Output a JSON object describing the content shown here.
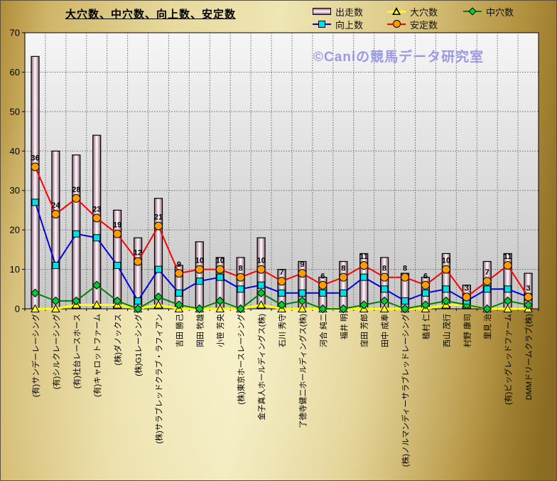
{
  "watermark": "©Caniの競馬データ研究室",
  "legend": {
    "items": [
      {
        "label": "出走数",
        "swatch": "bar"
      },
      {
        "label": "大穴数",
        "swatch": "triangle"
      },
      {
        "label": "中穴数",
        "swatch": "diamond"
      },
      {
        "label": "向上数",
        "swatch": "square"
      },
      {
        "label": "安定数",
        "swatch": "circle"
      }
    ]
  },
  "colors": {
    "bar_edge": "#8d6379",
    "bar_center": "#ffffff",
    "yellow_line": "#ffff00",
    "green_line": "#008000",
    "green_marker": "#00cc33",
    "blue_line": "#0000e0",
    "cyan_marker": "#00e0e6",
    "red_line": "#ff0000",
    "orange_marker": "#ff9d00",
    "watermark": "#9b9be4",
    "plot_top": "#f6f6f6",
    "plot_bottom": "#c6c6c6"
  },
  "chart_data": {
    "type": "bar",
    "title": "大穴数、中穴数、向上数、安定数",
    "xlabel": "",
    "ylabel": "",
    "ylim": [
      0,
      70
    ],
    "yticks": [
      0,
      10,
      20,
      30,
      40,
      50,
      60,
      70
    ],
    "grid": true,
    "legend_position": "top-right",
    "categories": [
      "(有)サンデーレーシング",
      "(有)シルクレーシング",
      "(有)社台レースホース",
      "(有)キャロットファーム",
      "(株)ダノックス",
      "(株)G1レーシング",
      "(株)サラブレッドクラブ・ラフィアン",
      "吉田 勝己",
      "岡田 牧雄",
      "小笹 芳央",
      "(株)東京ホースレーシング",
      "金子真人ホールディングス(株)",
      "石川 秀守",
      "了徳寺健二ホールディングス(株)",
      "河合 純二",
      "福井 明",
      "窪田 芳郎",
      "田中 成奉",
      "(株)ノルマンディーサラブレッドレーシング",
      "植村 仁",
      "西山 茂行",
      "村野 康司",
      "里見 治",
      "(有)ビッグレッドファーム",
      "DMMドリームクラブ(株)"
    ],
    "series": [
      {
        "name": "出走数",
        "kind": "bar",
        "values": [
          64,
          40,
          39,
          44,
          25,
          18,
          28,
          11,
          17,
          13,
          13,
          18,
          10,
          12,
          8,
          12,
          14,
          13,
          9,
          8,
          14,
          6,
          12,
          14,
          9
        ]
      },
      {
        "name": "大穴数",
        "kind": "line",
        "marker": "triangle",
        "line_color": "#ffff00",
        "marker_fill": "#ffff00",
        "line_width": 3,
        "values": [
          0,
          0,
          1,
          1,
          1,
          0,
          1,
          0,
          0,
          0,
          0,
          1,
          0,
          0,
          0,
          0,
          0,
          0,
          0,
          0,
          1,
          1,
          0,
          0,
          0
        ]
      },
      {
        "name": "中穴数",
        "kind": "line",
        "marker": "diamond",
        "line_color": "#008000",
        "marker_fill": "#00cc33",
        "line_width": 2,
        "values": [
          4,
          2,
          2,
          6,
          2,
          0,
          3,
          1,
          0,
          2,
          0,
          4,
          1,
          2,
          0,
          0,
          1,
          2,
          0,
          1,
          2,
          1,
          0,
          2,
          1
        ]
      },
      {
        "name": "向上数",
        "kind": "line",
        "marker": "square",
        "line_color": "#0000e0",
        "marker_fill": "#00e0e6",
        "line_width": 2,
        "values": [
          27,
          11,
          19,
          18,
          11,
          2,
          10,
          4,
          7,
          8,
          5,
          6,
          4,
          4,
          4,
          4,
          8,
          5,
          2,
          4,
          5,
          2,
          5,
          5,
          3
        ]
      },
      {
        "name": "安定数",
        "kind": "line",
        "marker": "circle",
        "line_color": "#ff0000",
        "marker_fill": "#ff9d00",
        "line_width": 2,
        "show_labels": true,
        "values": [
          36,
          24,
          28,
          23,
          19,
          12,
          21,
          9,
          10,
          10,
          8,
          10,
          7,
          9,
          6,
          8,
          11,
          8,
          8,
          6,
          10,
          3,
          7,
          11,
          3
        ]
      }
    ]
  }
}
